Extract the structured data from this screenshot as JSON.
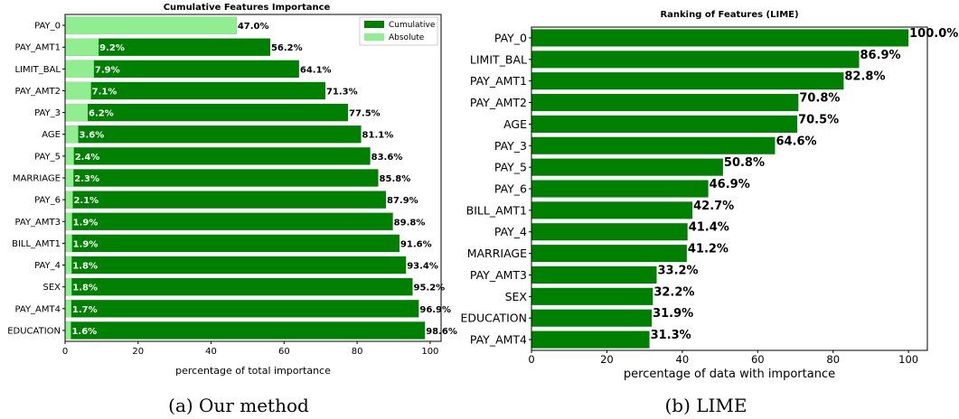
{
  "colors": {
    "cumulative": "#008000",
    "absolute": "#90ee90",
    "lime_bar": "#008000",
    "axis": "#000000",
    "label_light": "#ffffff",
    "label_dark": "#000000"
  },
  "captions": {
    "a": "(a) Our method",
    "b": "(b) LIME"
  },
  "chart_data": [
    {
      "type": "bar",
      "orientation": "horizontal",
      "title": "Cumulative Features Importance",
      "xlabel": "percentage of total importance",
      "xlim": [
        0,
        103
      ],
      "xticks": [
        0,
        20,
        40,
        60,
        80,
        100
      ],
      "legend_position": "top-right",
      "categories": [
        "PAY_0",
        "PAY_AMT1",
        "LIMIT_BAL",
        "PAY_AMT2",
        "PAY_3",
        "AGE",
        "PAY_5",
        "MARRIAGE",
        "PAY_6",
        "PAY_AMT3",
        "BILL_AMT1",
        "PAY_4",
        "SEX",
        "PAY_AMT4",
        "EDUCATION"
      ],
      "series": [
        {
          "name": "Cumulative",
          "values": [
            47.0,
            56.2,
            64.1,
            71.3,
            77.5,
            81.1,
            83.6,
            85.8,
            87.9,
            89.8,
            91.6,
            93.4,
            95.2,
            96.9,
            98.6
          ],
          "value_labels": [
            "47.0%",
            "56.2%",
            "64.1%",
            "71.3%",
            "77.5%",
            "81.1%",
            "83.6%",
            "85.8%",
            "87.9%",
            "89.8%",
            "91.6%",
            "93.4%",
            "95.2%",
            "96.9%",
            "98.6%"
          ]
        },
        {
          "name": "Absolute",
          "values": [
            47.0,
            9.2,
            7.9,
            7.1,
            6.2,
            3.6,
            2.4,
            2.3,
            2.1,
            1.9,
            1.9,
            1.8,
            1.8,
            1.7,
            1.6
          ],
          "value_labels": [
            "",
            "9.2%",
            "7.9%",
            "7.1%",
            "6.2%",
            "3.6%",
            "2.4%",
            "2.3%",
            "2.1%",
            "1.9%",
            "1.9%",
            "1.8%",
            "1.8%",
            "1.7%",
            "1.6%"
          ]
        }
      ]
    },
    {
      "type": "bar",
      "orientation": "horizontal",
      "title": "Ranking of Features (LIME)",
      "xlabel": "percentage of data with importance",
      "xlim": [
        0,
        105
      ],
      "xticks": [
        0,
        20,
        40,
        60,
        80,
        100
      ],
      "categories": [
        "PAY_0",
        "LIMIT_BAL",
        "PAY_AMT1",
        "PAY_AMT2",
        "AGE",
        "PAY_3",
        "PAY_5",
        "PAY_6",
        "BILL_AMT1",
        "PAY_4",
        "MARRIAGE",
        "PAY_AMT3",
        "SEX",
        "EDUCATION",
        "PAY_AMT4"
      ],
      "values": [
        100.0,
        86.9,
        82.8,
        70.8,
        70.5,
        64.6,
        50.8,
        46.9,
        42.7,
        41.4,
        41.2,
        33.2,
        32.2,
        31.9,
        31.3
      ],
      "value_labels": [
        "100.0%",
        "86.9%",
        "82.8%",
        "70.8%",
        "70.5%",
        "64.6%",
        "50.8%",
        "46.9%",
        "42.7%",
        "41.4%",
        "41.2%",
        "33.2%",
        "32.2%",
        "31.9%",
        "31.3%"
      ]
    }
  ]
}
